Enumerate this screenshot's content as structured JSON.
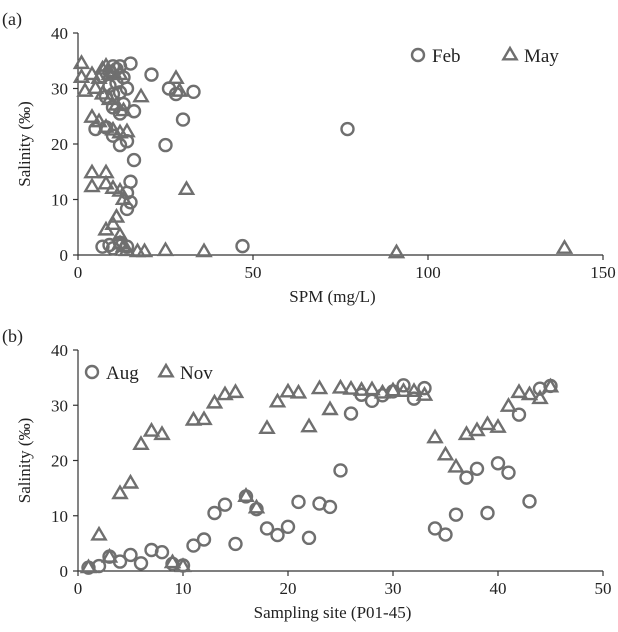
{
  "chart_data": [
    {
      "type": "scatter",
      "panel_label": "(a)",
      "xlabel": "SPM (mg/L)",
      "ylabel": "Salinity (‰)",
      "xlim": [
        0,
        150
      ],
      "ylim": [
        0,
        40
      ],
      "xticks": [
        0,
        50,
        100,
        150
      ],
      "yticks": [
        0,
        10,
        20,
        30,
        40
      ],
      "legend_position": "top-right",
      "series": [
        {
          "name": "Feb",
          "marker": "circle",
          "points": [
            [
              7,
              1.5
            ],
            [
              9,
              1.8
            ],
            [
              10,
              1.2
            ],
            [
              12,
              2.2
            ],
            [
              14,
              1.5
            ],
            [
              47,
              1.6
            ],
            [
              77,
              22.7
            ],
            [
              25,
              19.8
            ],
            [
              16,
              17.1
            ],
            [
              15,
              13.2
            ],
            [
              14,
              11.2
            ],
            [
              15,
              9.5
            ],
            [
              14,
              8.3
            ],
            [
              5,
              22.7
            ],
            [
              8,
              23
            ],
            [
              10,
              21.5
            ],
            [
              12,
              19.8
            ],
            [
              14,
              20.5
            ],
            [
              12,
              25.5
            ],
            [
              16,
              25.9
            ],
            [
              8,
              28.5
            ],
            [
              10,
              29
            ],
            [
              12,
              29.3
            ],
            [
              14,
              30
            ],
            [
              9,
              30.5
            ],
            [
              11,
              31
            ],
            [
              13,
              32
            ],
            [
              7,
              32.2
            ],
            [
              9,
              33
            ],
            [
              11,
              33.5
            ],
            [
              10,
              34
            ],
            [
              12,
              34
            ],
            [
              15,
              34.5
            ],
            [
              21,
              32.5
            ],
            [
              26,
              30
            ],
            [
              28,
              29
            ],
            [
              30,
              24.4
            ],
            [
              33,
              29.4
            ],
            [
              10,
              26.6
            ],
            [
              13,
              27.2
            ]
          ]
        },
        {
          "name": "May",
          "marker": "triangle",
          "points": [
            [
              1,
              34.5
            ],
            [
              1,
              32
            ],
            [
              2,
              29.5
            ],
            [
              4,
              32.5
            ],
            [
              6,
              31.8
            ],
            [
              7,
              33.5
            ],
            [
              8,
              34
            ],
            [
              9,
              32.5
            ],
            [
              10,
              33
            ],
            [
              12,
              32.5
            ],
            [
              5,
              30
            ],
            [
              7,
              29
            ],
            [
              9,
              28
            ],
            [
              11,
              27
            ],
            [
              13,
              26
            ],
            [
              18,
              28.5
            ],
            [
              28,
              31.8
            ],
            [
              29,
              29.5
            ],
            [
              4,
              24.8
            ],
            [
              6,
              24
            ],
            [
              8,
              23
            ],
            [
              10,
              22.5
            ],
            [
              12,
              22
            ],
            [
              14,
              22.2
            ],
            [
              4,
              14.8
            ],
            [
              4,
              12.3
            ],
            [
              8,
              14.8
            ],
            [
              8,
              12.8
            ],
            [
              10,
              12
            ],
            [
              12,
              11.5
            ],
            [
              13,
              10
            ],
            [
              31,
              11.8
            ],
            [
              8,
              4.5
            ],
            [
              10,
              5.5
            ],
            [
              12,
              3.5
            ],
            [
              11,
              6.8
            ],
            [
              12,
              2
            ],
            [
              14,
              0.8
            ],
            [
              17,
              0.6
            ],
            [
              19,
              0.6
            ],
            [
              25,
              0.8
            ],
            [
              36,
              0.6
            ],
            [
              91,
              0.4
            ],
            [
              139,
              1.2
            ],
            [
              13,
              1.5
            ]
          ]
        }
      ]
    },
    {
      "type": "scatter",
      "panel_label": "(b)",
      "xlabel": "Sampling site (P01-45)",
      "ylabel": "Salinity (‰)",
      "xlim": [
        0,
        50
      ],
      "ylim": [
        0,
        40
      ],
      "xticks": [
        0,
        10,
        20,
        30,
        40,
        50
      ],
      "yticks": [
        0,
        10,
        20,
        30,
        40
      ],
      "legend_position": "top-left",
      "series": [
        {
          "name": "Aug",
          "marker": "circle",
          "points": [
            [
              1,
              0.6
            ],
            [
              2,
              0.9
            ],
            [
              3,
              2.6
            ],
            [
              4,
              1.7
            ],
            [
              5,
              2.9
            ],
            [
              6,
              1.4
            ],
            [
              7,
              3.8
            ],
            [
              8,
              3.4
            ],
            [
              9,
              1.3
            ],
            [
              10,
              1.0
            ],
            [
              11,
              4.6
            ],
            [
              12,
              5.7
            ],
            [
              13,
              10.5
            ],
            [
              14,
              12
            ],
            [
              15,
              4.9
            ],
            [
              16,
              13.5
            ],
            [
              17,
              11.2
            ],
            [
              18,
              7.7
            ],
            [
              19,
              6.5
            ],
            [
              20,
              8
            ],
            [
              21,
              12.5
            ],
            [
              22,
              6
            ],
            [
              23,
              12.2
            ],
            [
              24,
              11.6
            ],
            [
              25,
              18.2
            ],
            [
              26,
              28.5
            ],
            [
              27,
              31.9
            ],
            [
              28,
              30.8
            ],
            [
              29,
              31.8
            ],
            [
              30,
              32.5
            ],
            [
              31,
              33.6
            ],
            [
              32,
              31.2
            ],
            [
              33,
              33.1
            ],
            [
              34,
              7.7
            ],
            [
              35,
              6.6
            ],
            [
              36,
              10.2
            ],
            [
              37,
              16.9
            ],
            [
              38,
              18.5
            ],
            [
              39,
              10.5
            ],
            [
              40,
              19.5
            ],
            [
              41,
              17.8
            ],
            [
              42,
              28.3
            ],
            [
              43,
              12.6
            ],
            [
              44,
              33
            ],
            [
              45,
              33.5
            ]
          ]
        },
        {
          "name": "Nov",
          "marker": "triangle",
          "points": [
            [
              1,
              0.6
            ],
            [
              2,
              6.5
            ],
            [
              3,
              2.5
            ],
            [
              4,
              14
            ],
            [
              5,
              15.9
            ],
            [
              6,
              22.9
            ],
            [
              7,
              25.3
            ],
            [
              8,
              24.7
            ],
            [
              9,
              1.5
            ],
            [
              10,
              0.8
            ],
            [
              11,
              27.3
            ],
            [
              12,
              27.4
            ],
            [
              13,
              30.4
            ],
            [
              14,
              31.9
            ],
            [
              15,
              32.3
            ],
            [
              16,
              13.5
            ],
            [
              17,
              11.4
            ],
            [
              18,
              25.8
            ],
            [
              19,
              30.6
            ],
            [
              20,
              32.4
            ],
            [
              21,
              32.2
            ],
            [
              22,
              26.1
            ],
            [
              23,
              33
            ],
            [
              24,
              29.2
            ],
            [
              25,
              33.1
            ],
            [
              26,
              32.9
            ],
            [
              27,
              32.7
            ],
            [
              28,
              32.8
            ],
            [
              29,
              32.2
            ],
            [
              30,
              32.6
            ],
            [
              31,
              32.5
            ],
            [
              32,
              32.5
            ],
            [
              33,
              31.8
            ],
            [
              34,
              24.1
            ],
            [
              35,
              21
            ],
            [
              36,
              18.8
            ],
            [
              37,
              24.7
            ],
            [
              38,
              25.4
            ],
            [
              39,
              26.5
            ],
            [
              40,
              26
            ],
            [
              41,
              29.8
            ],
            [
              42,
              32.3
            ],
            [
              43,
              31.9
            ],
            [
              44,
              31.2
            ],
            [
              45,
              33.3
            ]
          ]
        }
      ]
    }
  ]
}
